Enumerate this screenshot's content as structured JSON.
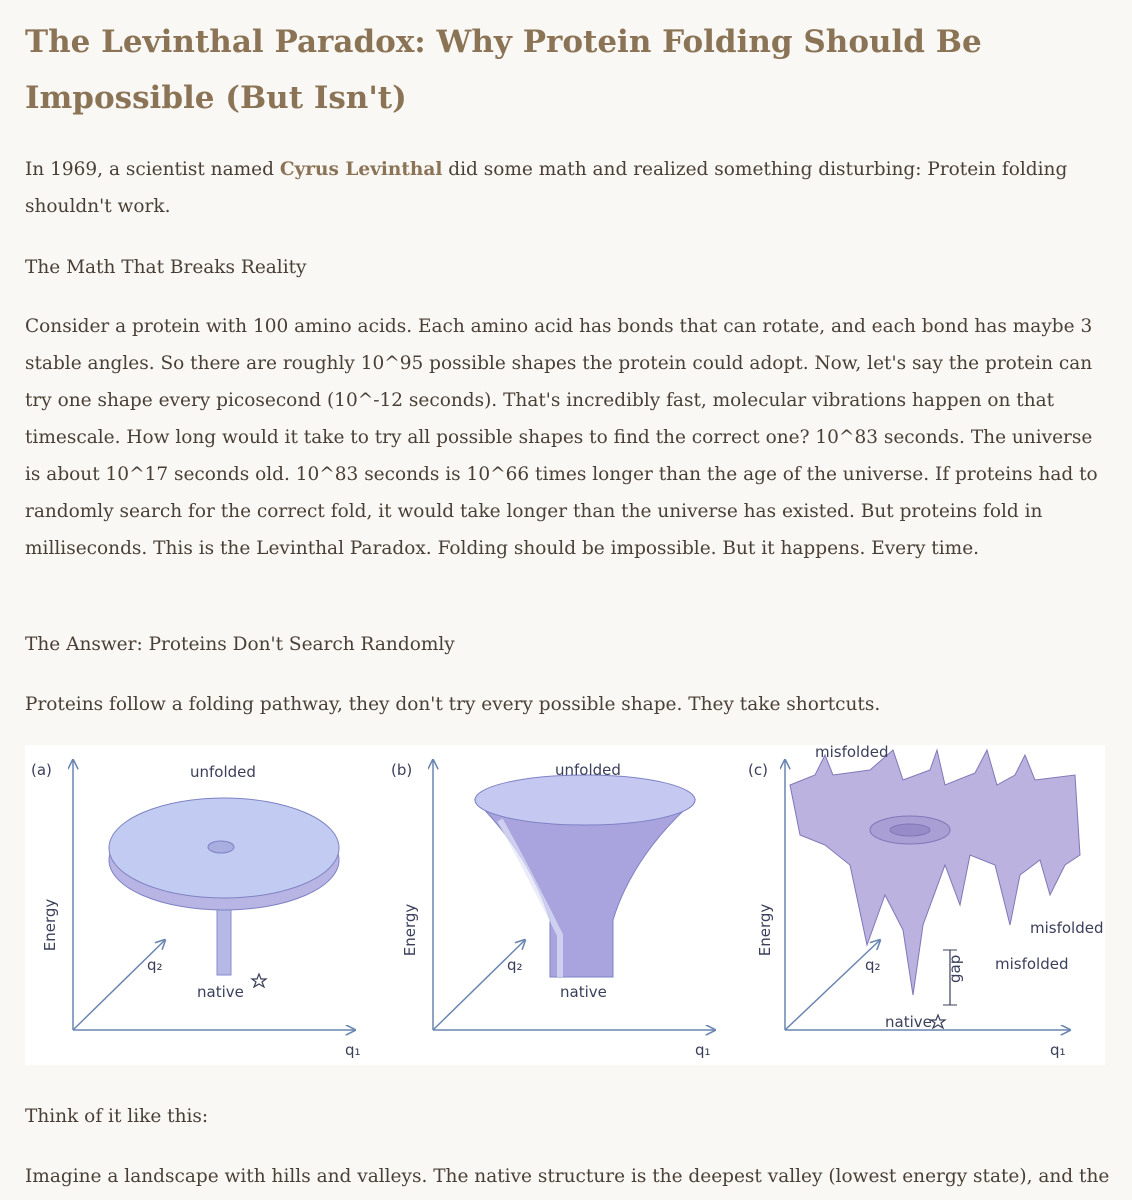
{
  "title": "The Levinthal Paradox: Why Protein Folding Should Be Impossible (But Isn't)",
  "intro": {
    "before": "In 1969, a scientist named ",
    "name": "Cyrus Levinthal",
    "after": " did some math and realized something disturbing: Protein folding shouldn't work."
  },
  "heading_1": "The Math That Breaks Reality",
  "paragraph_1": "Consider a protein with 100 amino acids. Each amino acid has bonds that can rotate, and each bond has maybe 3 stable angles. So there are roughly 10^95 possible shapes the protein could adopt. Now, let's say the protein can try one shape every picosecond (10^-12 seconds). That's incredibly fast, molecular vibrations happen on that timescale. How long would it take to try all possible shapes to find the correct one? 10^83 seconds. The universe is about 10^17 seconds old. 10^83 seconds is 10^66 times longer than the age of the universe. If proteins had to randomly search for the correct fold, it would take longer than the universe has existed. But proteins fold in milliseconds. This is the Levinthal Paradox. Folding should be impossible. But it happens. Every time.",
  "heading_2": "The Answer: Proteins Don't Search Randomly",
  "paragraph_2": "Proteins follow a folding pathway, they don't try every possible shape. They take shortcuts.",
  "figure": {
    "panels": [
      {
        "label": "(a)",
        "top": "unfolded",
        "bottom": "native",
        "y_axis": "Energy",
        "x_axis": "q₁",
        "z_axis": "q₂"
      },
      {
        "label": "(b)",
        "top": "unfolded",
        "bottom": "native",
        "y_axis": "Energy",
        "x_axis": "q₁",
        "z_axis": "q₂"
      },
      {
        "label": "(c)",
        "bottom": "native",
        "y_axis": "Energy",
        "x_axis": "q₁",
        "z_axis": "q₂",
        "misfolded": [
          "misfolded",
          "misfolded",
          "misfolded"
        ],
        "gap": "gap"
      }
    ]
  },
  "paragraph_3": "Think of it like this:",
  "paragraph_4": "Imagine a landscape with hills and valleys. The native structure is the deepest valley (lowest energy state), and the protein rolls downhill toward it."
}
